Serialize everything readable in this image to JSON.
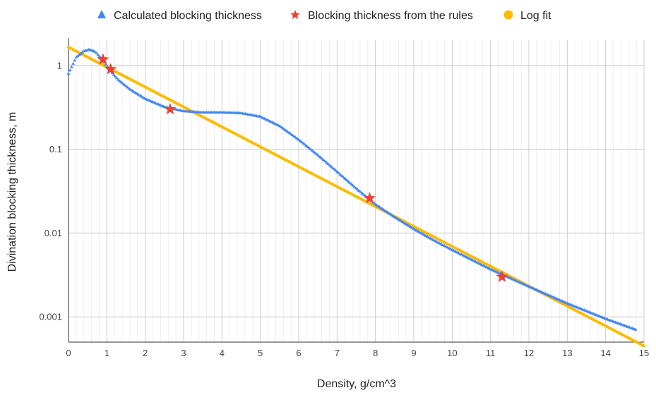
{
  "chart_data": {
    "type": "scatter",
    "xlabel": "Density, g/cm^3",
    "ylabel": "Divination blocking thickness, m",
    "xlim": [
      0,
      15
    ],
    "ylim": [
      0.0005,
      2
    ],
    "y_scale": "log",
    "grid": true,
    "legend_position": "top",
    "x_ticks": [
      "0",
      "1",
      "2",
      "3",
      "4",
      "5",
      "6",
      "7",
      "8",
      "9",
      "10",
      "11",
      "12",
      "13",
      "14",
      "15"
    ],
    "y_ticks": [
      {
        "value": 1,
        "label": "1"
      },
      {
        "value": 0.1,
        "label": "0.1"
      },
      {
        "value": 0.01,
        "label": "0.01"
      },
      {
        "value": 0.001,
        "label": "0.001"
      }
    ],
    "series": [
      {
        "name": "Calculated blocking thickness",
        "marker": "triangle-icon",
        "color": "#4285F4",
        "x": [
          0,
          0.2,
          0.4,
          0.55,
          0.7,
          0.9,
          1.1,
          1.3,
          1.6,
          2.0,
          2.5,
          3.0,
          3.5,
          4.0,
          4.5,
          5.0,
          5.5,
          6.0,
          6.5,
          7.0,
          7.5,
          8.0,
          8.5,
          9.0,
          9.5,
          10.0,
          11.0,
          12.0,
          13.0,
          14.0,
          14.8
        ],
        "y": [
          0.8,
          1.25,
          1.48,
          1.55,
          1.45,
          1.15,
          0.85,
          0.67,
          0.52,
          0.4,
          0.32,
          0.285,
          0.275,
          0.275,
          0.27,
          0.245,
          0.19,
          0.13,
          0.085,
          0.054,
          0.034,
          0.022,
          0.0155,
          0.0112,
          0.0083,
          0.0063,
          0.0037,
          0.0023,
          0.00145,
          0.00095,
          0.0007
        ]
      },
      {
        "name": "Blocking thickness from the rules",
        "marker": "star-icon",
        "color": "#EA4335",
        "x": [
          0.9,
          1.1,
          2.65,
          7.85,
          11.3
        ],
        "y": [
          1.18,
          0.9,
          0.3,
          0.026,
          0.003
        ]
      },
      {
        "name": "Log fit",
        "marker": "circle-icon",
        "color": "#FBBC04",
        "x": [
          0,
          15
        ],
        "y": [
          1.65,
          0.00045
        ]
      }
    ]
  }
}
